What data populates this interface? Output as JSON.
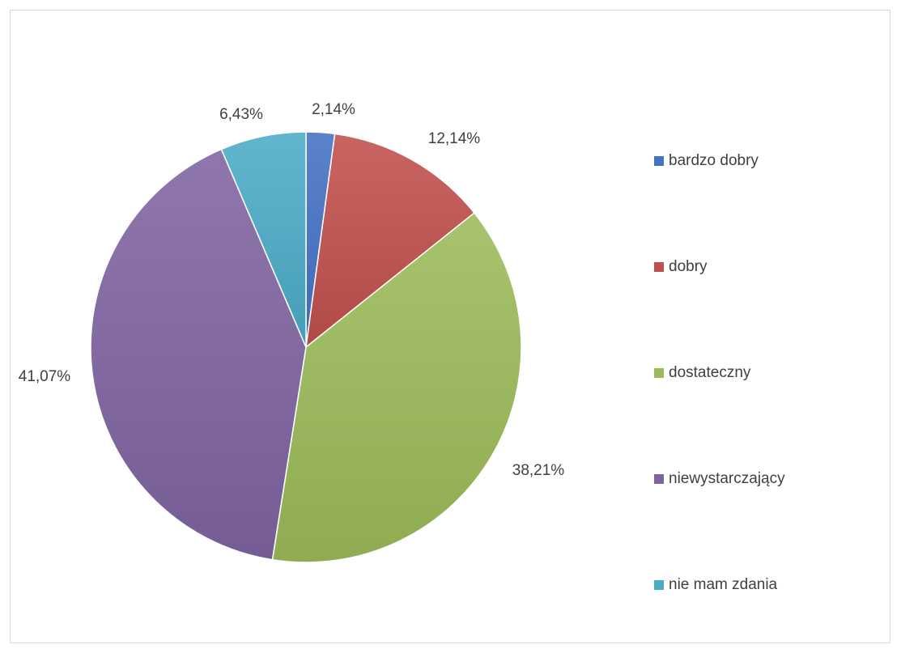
{
  "chart_data": {
    "type": "pie",
    "title": "",
    "categories": [
      "bardzo dobry",
      "dobry",
      "dostateczny",
      "niewystarczający",
      "nie mam zdania"
    ],
    "values": [
      2.14,
      12.14,
      38.21,
      41.07,
      6.43
    ],
    "data_labels": [
      "2,14%",
      "12,14%",
      "38,21%",
      "41,07%",
      "6,43%"
    ],
    "colors": [
      "#4472C4",
      "#C0504D",
      "#9BBB59",
      "#8064A2",
      "#4BACC6"
    ],
    "start_angle_deg": 0,
    "direction": "clockwise",
    "legend_position": "right"
  }
}
